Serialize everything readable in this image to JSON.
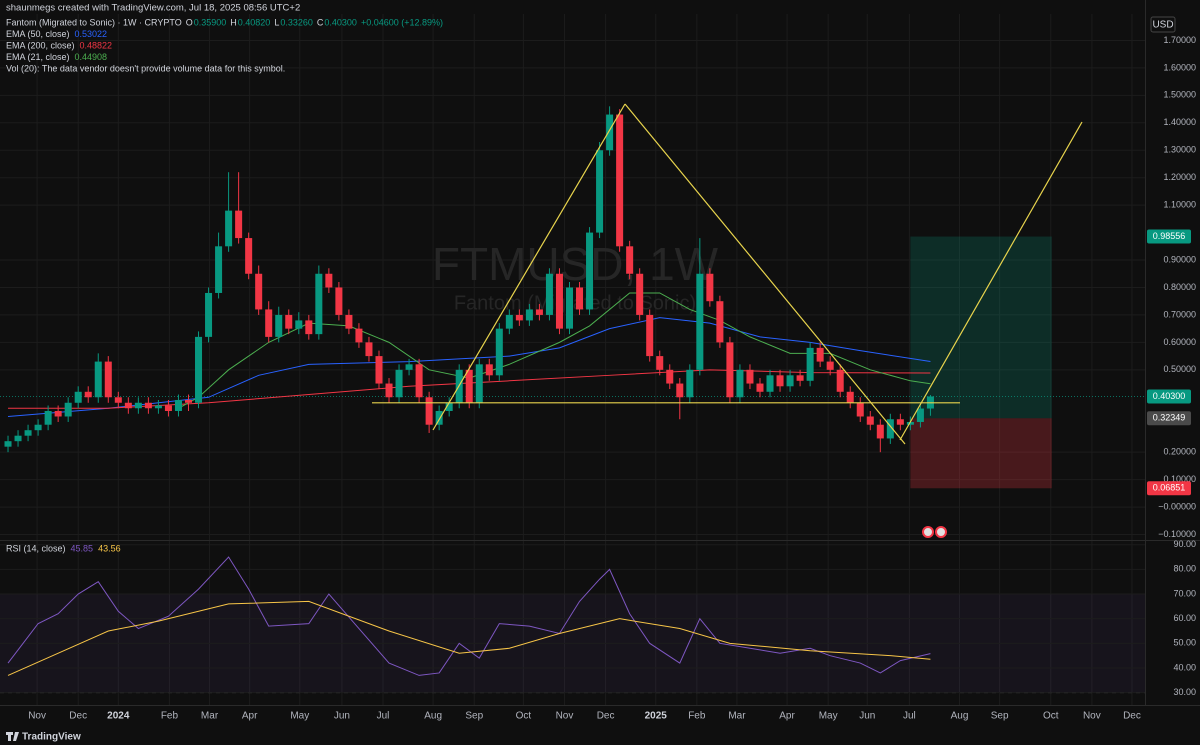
{
  "header": {
    "attribution": "shaunmegs created with TradingView.com, Jul 18, 2025 08:56 UTC+2",
    "brand": "TradingView"
  },
  "chart_data": [
    {
      "type": "candlestick",
      "title": "FTMUSD, 1W",
      "subtitle": "Fantom (Migrated to Sonic)",
      "symbol": "Fantom (Migrated to Sonic) · 1W · CRYPTO",
      "ohlc": [
        {
          "label": "O",
          "value": "0.35900"
        },
        {
          "label": "H",
          "value": "0.40820"
        },
        {
          "label": "L",
          "value": "0.33260"
        },
        {
          "label": "C",
          "value": "0.40300"
        }
      ],
      "change": "+0.04600 (+12.89%)",
      "note": "Vol (20): The data vendor doesn't provide volume data for this symbol.",
      "currency": "USD",
      "up_color": "#089981",
      "down_color": "#f23645",
      "open": [
        0.22,
        0.24,
        0.26,
        0.28,
        0.3,
        0.35,
        0.33,
        0.38,
        0.42,
        0.4,
        0.53,
        0.4,
        0.38,
        0.36,
        0.38,
        0.36,
        0.37,
        0.35,
        0.39,
        0.38,
        0.62,
        0.78,
        0.95,
        1.08,
        0.98,
        0.85,
        0.72,
        0.62,
        0.7,
        0.65,
        0.68,
        0.63,
        0.85,
        0.8,
        0.7,
        0.65,
        0.6,
        0.55,
        0.45,
        0.4,
        0.5,
        0.52,
        0.4,
        0.3,
        0.35,
        0.38,
        0.5,
        0.38,
        0.52,
        0.48,
        0.65,
        0.7,
        0.68,
        0.72,
        0.7,
        0.85,
        0.65,
        0.8,
        0.72,
        1.0,
        1.3,
        1.43,
        0.95,
        0.85,
        0.7,
        0.55,
        0.5,
        0.45,
        0.4,
        0.5,
        0.85,
        0.75,
        0.6,
        0.4,
        0.5,
        0.45,
        0.42,
        0.48,
        0.44,
        0.48,
        0.46,
        0.58,
        0.53,
        0.5,
        0.42,
        0.38,
        0.33,
        0.3,
        0.25,
        0.32,
        0.3,
        0.31,
        0.359
      ],
      "high": [
        0.26,
        0.28,
        0.3,
        0.32,
        0.37,
        0.37,
        0.4,
        0.44,
        0.44,
        0.56,
        0.55,
        0.42,
        0.4,
        0.4,
        0.4,
        0.39,
        0.39,
        0.41,
        0.41,
        0.64,
        0.8,
        1.0,
        1.22,
        1.22,
        1.0,
        0.88,
        0.75,
        0.73,
        0.72,
        0.71,
        0.7,
        0.88,
        0.87,
        0.82,
        0.72,
        0.67,
        0.62,
        0.57,
        0.47,
        0.52,
        0.54,
        0.54,
        0.42,
        0.37,
        0.4,
        0.52,
        0.52,
        0.54,
        0.54,
        0.67,
        0.72,
        0.72,
        0.74,
        0.74,
        0.87,
        0.87,
        0.82,
        0.82,
        1.02,
        1.33,
        1.46,
        1.45,
        0.97,
        0.87,
        0.72,
        0.57,
        0.52,
        0.47,
        0.52,
        0.98,
        0.87,
        0.77,
        0.62,
        0.52,
        0.52,
        0.47,
        0.5,
        0.5,
        0.5,
        0.5,
        0.6,
        0.6,
        0.55,
        0.52,
        0.44,
        0.4,
        0.35,
        0.32,
        0.34,
        0.34,
        0.33,
        0.37,
        0.4082
      ],
      "low": [
        0.2,
        0.22,
        0.24,
        0.26,
        0.28,
        0.31,
        0.31,
        0.36,
        0.38,
        0.38,
        0.38,
        0.36,
        0.34,
        0.34,
        0.34,
        0.34,
        0.33,
        0.33,
        0.35,
        0.36,
        0.6,
        0.76,
        0.93,
        0.96,
        0.83,
        0.7,
        0.6,
        0.6,
        0.63,
        0.63,
        0.61,
        0.61,
        0.78,
        0.68,
        0.63,
        0.58,
        0.53,
        0.43,
        0.38,
        0.38,
        0.48,
        0.38,
        0.27,
        0.28,
        0.33,
        0.36,
        0.36,
        0.36,
        0.46,
        0.46,
        0.63,
        0.66,
        0.66,
        0.68,
        0.68,
        0.63,
        0.63,
        0.7,
        0.7,
        0.98,
        1.28,
        0.93,
        0.83,
        0.68,
        0.53,
        0.48,
        0.43,
        0.32,
        0.38,
        0.48,
        0.73,
        0.58,
        0.38,
        0.38,
        0.43,
        0.4,
        0.4,
        0.42,
        0.42,
        0.44,
        0.44,
        0.51,
        0.48,
        0.4,
        0.36,
        0.31,
        0.28,
        0.2,
        0.23,
        0.28,
        0.28,
        0.29,
        0.3326
      ],
      "close": [
        0.24,
        0.26,
        0.28,
        0.3,
        0.35,
        0.33,
        0.38,
        0.42,
        0.4,
        0.53,
        0.4,
        0.38,
        0.36,
        0.38,
        0.36,
        0.37,
        0.35,
        0.39,
        0.38,
        0.62,
        0.78,
        0.95,
        1.08,
        0.98,
        0.85,
        0.72,
        0.62,
        0.7,
        0.65,
        0.68,
        0.63,
        0.85,
        0.8,
        0.7,
        0.65,
        0.6,
        0.55,
        0.45,
        0.4,
        0.5,
        0.52,
        0.4,
        0.3,
        0.35,
        0.38,
        0.5,
        0.38,
        0.52,
        0.48,
        0.65,
        0.7,
        0.68,
        0.72,
        0.7,
        0.85,
        0.65,
        0.8,
        0.72,
        1.0,
        1.3,
        1.43,
        0.95,
        0.85,
        0.7,
        0.55,
        0.5,
        0.45,
        0.4,
        0.5,
        0.85,
        0.75,
        0.6,
        0.4,
        0.5,
        0.45,
        0.42,
        0.48,
        0.44,
        0.48,
        0.46,
        0.58,
        0.53,
        0.5,
        0.42,
        0.38,
        0.33,
        0.3,
        0.25,
        0.32,
        0.3,
        0.31,
        0.359,
        0.403
      ],
      "overlays": [
        {
          "name": "EMA (50, close)",
          "color": "#2962ff",
          "x": [
            0,
            10,
            20,
            25,
            30,
            40,
            50,
            55,
            60,
            65,
            70,
            75,
            80,
            85,
            92
          ],
          "values": [
            0.33,
            0.36,
            0.4,
            0.48,
            0.52,
            0.53,
            0.55,
            0.58,
            0.65,
            0.69,
            0.67,
            0.62,
            0.6,
            0.57,
            0.53022
          ]
        },
        {
          "name": "EMA (200, close)",
          "color": "#f23645",
          "x": [
            0,
            10,
            20,
            30,
            40,
            50,
            60,
            70,
            80,
            92
          ],
          "values": [
            0.36,
            0.36,
            0.38,
            0.41,
            0.44,
            0.46,
            0.48,
            0.5,
            0.49,
            0.48822
          ]
        },
        {
          "name": "EMA (21, close)",
          "color": "#4caf50",
          "x": [
            17,
            19,
            22,
            26,
            30,
            34,
            38,
            42,
            46,
            50,
            55,
            58,
            62,
            65,
            68,
            71,
            74,
            78,
            82,
            86,
            90,
            92
          ],
          "values": [
            0.36,
            0.4,
            0.5,
            0.6,
            0.67,
            0.66,
            0.6,
            0.5,
            0.47,
            0.52,
            0.6,
            0.66,
            0.78,
            0.78,
            0.72,
            0.68,
            0.62,
            0.56,
            0.56,
            0.5,
            0.46,
            0.44908
          ]
        }
      ],
      "price_labels": [
        {
          "value": 0.98556,
          "color": "#089981"
        },
        {
          "value": 0.403,
          "label": "0.40300",
          "color": "#089981"
        },
        {
          "value": 0.32349,
          "color": "#4a4a4a"
        },
        {
          "value": 0.06851,
          "color": "#f23645"
        }
      ],
      "position_x": [
        90,
        104.1
      ],
      "xlim": [
        -0.8,
        113.4
      ],
      "xticks": [
        {
          "value": 2.9,
          "label": "Nov"
        },
        {
          "value": 7.0,
          "label": "Dec"
        },
        {
          "value": 11.0,
          "label": "2024"
        },
        {
          "value": 16.1,
          "label": "Feb"
        },
        {
          "value": 20.1,
          "label": "Mar"
        },
        {
          "value": 24.1,
          "label": "Apr"
        },
        {
          "value": 29.1,
          "label": "May"
        },
        {
          "value": 33.3,
          "label": "Jun"
        },
        {
          "value": 37.4,
          "label": "Jul"
        },
        {
          "value": 42.4,
          "label": "Aug"
        },
        {
          "value": 46.5,
          "label": "Sep"
        },
        {
          "value": 51.4,
          "label": "Oct"
        },
        {
          "value": 55.5,
          "label": "Nov"
        },
        {
          "value": 59.6,
          "label": "Dec"
        },
        {
          "value": 64.6,
          "label": "2025"
        },
        {
          "value": 68.7,
          "label": "Feb"
        },
        {
          "value": 72.7,
          "label": "Mar"
        },
        {
          "value": 77.7,
          "label": "Apr"
        },
        {
          "value": 81.8,
          "label": "May"
        },
        {
          "value": 85.7,
          "label": "Jun"
        },
        {
          "value": 89.9,
          "label": "Jul"
        },
        {
          "value": 94.9,
          "label": "Aug"
        },
        {
          "value": 98.9,
          "label": "Sep"
        },
        {
          "value": 104.0,
          "label": "Oct"
        },
        {
          "value": 108.1,
          "label": "Nov"
        },
        {
          "value": 112.1,
          "label": "Dec"
        }
      ],
      "ylim": [
        -0.12,
        1.8
      ],
      "yticks": [
        {
          "value": 1.7,
          "label": "1.70000"
        },
        {
          "value": 1.6,
          "label": "1.60000"
        },
        {
          "value": 1.5,
          "label": "1.50000"
        },
        {
          "value": 1.4,
          "label": "1.40000"
        },
        {
          "value": 1.3,
          "label": "1.30000"
        },
        {
          "value": 1.2,
          "label": "1.20000"
        },
        {
          "value": 1.1,
          "label": "1.10000"
        },
        {
          "value": 0.9,
          "label": "0.90000"
        },
        {
          "value": 0.8,
          "label": "0.80000"
        },
        {
          "value": 0.7,
          "label": "0.70000"
        },
        {
          "value": 0.6,
          "label": "0.60000"
        },
        {
          "value": 0.5,
          "label": "0.50000"
        },
        {
          "value": 0.2,
          "label": "0.20000"
        },
        {
          "value": 0.1,
          "label": "0.10000"
        },
        {
          "value": 0,
          "label": "−0.00000"
        },
        {
          "value": -0.1,
          "label": "−0.10000"
        }
      ]
    },
    {
      "type": "line",
      "title": "RSI (14, close)",
      "series": [
        {
          "color": "#7e57c2",
          "x": [
            0,
            3,
            5,
            7,
            9,
            11,
            13,
            16,
            19,
            22,
            24,
            26,
            30,
            32,
            35,
            38,
            41,
            43,
            45,
            47,
            49,
            52,
            55,
            57,
            59,
            60,
            62,
            64,
            67,
            69,
            71,
            74,
            77,
            80,
            82,
            85,
            87,
            89,
            92
          ],
          "values": [
            42,
            58,
            62,
            70,
            75,
            63,
            56,
            61,
            72,
            85,
            72,
            57,
            58,
            70,
            56,
            42,
            37,
            38,
            50,
            44,
            58,
            57,
            54,
            67,
            76,
            80,
            62,
            50,
            42,
            60,
            50,
            48,
            46,
            48,
            45,
            42,
            38,
            43,
            45.85
          ]
        },
        {
          "color": "#f7c548",
          "x": [
            0,
            10,
            15,
            22,
            30,
            38,
            45,
            50,
            55,
            61,
            67,
            72,
            80,
            88,
            92
          ],
          "values": [
            37,
            55,
            59,
            66,
            67,
            55,
            46,
            48,
            54,
            60,
            56,
            50,
            47,
            45,
            43.56
          ]
        }
      ],
      "band": [
        30,
        70
      ],
      "band_color": "#7e57c2",
      "ylim": [
        25,
        91.5
      ],
      "yticks": [
        {
          "value": 90,
          "label": "90.00"
        },
        {
          "value": 80,
          "label": "80.00"
        },
        {
          "value": 70,
          "label": "70.00"
        },
        {
          "value": 60,
          "label": "60.00"
        },
        {
          "value": 50,
          "label": "50.00"
        },
        {
          "value": 40,
          "label": "40.00"
        },
        {
          "value": 30,
          "label": "30.00"
        }
      ]
    }
  ]
}
